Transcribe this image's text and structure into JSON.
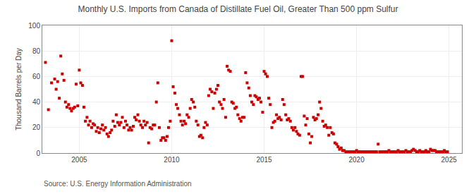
{
  "chart_data": {
    "type": "scatter",
    "title": "Monthly U.S. Imports from Canada of Distillate Fuel Oil, Greater Than 500 ppm Sulfur",
    "ylabel": "Thousand Barrels per Day",
    "annotations": [
      "Source: U.S. Energy Information Administration"
    ],
    "color": "#cc0000",
    "marker": "square",
    "grid": true,
    "xlim": [
      2003.0,
      2025.7
    ],
    "ylim": [
      0,
      100
    ],
    "xticks": [
      2005,
      2010,
      2015,
      2020,
      2025
    ],
    "yticks": [
      0,
      20,
      40,
      60,
      80,
      100
    ],
    "x": [
      2003.17,
      2003.33,
      2003.5,
      2003.67,
      2003.75,
      2003.83,
      2003.92,
      2004.0,
      2004.08,
      2004.17,
      2004.25,
      2004.33,
      2004.42,
      2004.5,
      2004.58,
      2004.67,
      2004.75,
      2004.83,
      2004.92,
      2005.0,
      2005.08,
      2005.17,
      2005.25,
      2005.33,
      2005.42,
      2005.5,
      2005.58,
      2005.67,
      2005.75,
      2005.83,
      2005.92,
      2006.0,
      2006.08,
      2006.17,
      2006.25,
      2006.33,
      2006.42,
      2006.5,
      2006.58,
      2006.67,
      2006.75,
      2006.83,
      2006.92,
      2007.0,
      2007.08,
      2007.17,
      2007.25,
      2007.33,
      2007.42,
      2007.5,
      2007.58,
      2007.67,
      2007.75,
      2007.83,
      2007.92,
      2008.0,
      2008.08,
      2008.17,
      2008.25,
      2008.33,
      2008.42,
      2008.5,
      2008.58,
      2008.67,
      2008.75,
      2008.83,
      2008.92,
      2009.0,
      2009.08,
      2009.17,
      2009.25,
      2009.33,
      2009.42,
      2009.5,
      2009.58,
      2009.67,
      2009.75,
      2009.83,
      2009.92,
      2010.0,
      2010.08,
      2010.17,
      2010.25,
      2010.33,
      2010.42,
      2010.5,
      2010.58,
      2010.67,
      2010.75,
      2010.83,
      2010.92,
      2011.0,
      2011.08,
      2011.17,
      2011.25,
      2011.33,
      2011.42,
      2011.5,
      2011.58,
      2011.67,
      2011.75,
      2011.83,
      2011.92,
      2012.0,
      2012.08,
      2012.17,
      2012.25,
      2012.33,
      2012.42,
      2012.5,
      2012.58,
      2012.67,
      2012.75,
      2012.83,
      2012.92,
      2013.0,
      2013.08,
      2013.17,
      2013.25,
      2013.33,
      2013.42,
      2013.5,
      2013.58,
      2013.67,
      2013.75,
      2013.83,
      2013.92,
      2014.0,
      2014.08,
      2014.17,
      2014.25,
      2014.33,
      2014.42,
      2014.5,
      2014.58,
      2014.67,
      2014.75,
      2014.83,
      2014.92,
      2015.0,
      2015.08,
      2015.17,
      2015.25,
      2015.33,
      2015.42,
      2015.5,
      2015.58,
      2015.67,
      2015.75,
      2015.83,
      2015.92,
      2016.0,
      2016.08,
      2016.17,
      2016.25,
      2016.33,
      2016.42,
      2016.5,
      2016.58,
      2016.67,
      2016.75,
      2016.83,
      2016.92,
      2017.0,
      2017.08,
      2017.17,
      2017.25,
      2017.33,
      2017.42,
      2017.5,
      2017.58,
      2017.67,
      2017.75,
      2017.83,
      2017.92,
      2018.0,
      2018.08,
      2018.17,
      2018.25,
      2018.33,
      2018.42,
      2018.5,
      2018.58,
      2018.67,
      2018.75,
      2018.83,
      2018.92,
      2019.0,
      2019.08,
      2019.17,
      2019.25,
      2019.33,
      2019.42,
      2019.5,
      2019.58,
      2019.67,
      2019.75,
      2019.83,
      2019.92,
      2020.0,
      2020.08,
      2020.17,
      2020.25,
      2020.33,
      2020.42,
      2020.5,
      2020.58,
      2020.67,
      2020.75,
      2020.83,
      2020.92,
      2021.0,
      2021.08,
      2021.17,
      2021.25,
      2021.33,
      2021.42,
      2021.5,
      2021.58,
      2021.67,
      2021.75,
      2021.83,
      2021.92,
      2022.0,
      2022.08,
      2022.17,
      2022.25,
      2022.33,
      2022.42,
      2022.5,
      2022.58,
      2022.67,
      2022.75,
      2022.83,
      2022.92,
      2023.0,
      2023.08,
      2023.17,
      2023.25,
      2023.33,
      2023.42,
      2023.5,
      2023.58,
      2023.67,
      2023.75,
      2023.83,
      2023.92,
      2024.0,
      2024.08,
      2024.17,
      2024.25,
      2024.33,
      2024.42,
      2024.5,
      2024.58,
      2024.67,
      2024.75,
      2024.83,
      2024.92
    ],
    "values": [
      71,
      34,
      55,
      58,
      50,
      56,
      43,
      76,
      62,
      57,
      40,
      36,
      38,
      35,
      33,
      35,
      36,
      54,
      37,
      65,
      55,
      53,
      36,
      25,
      28,
      22,
      25,
      20,
      23,
      22,
      17,
      20,
      16,
      19,
      22,
      18,
      20,
      15,
      13,
      16,
      18,
      25,
      21,
      30,
      24,
      22,
      24,
      28,
      20,
      25,
      22,
      18,
      20,
      18,
      21,
      28,
      26,
      30,
      25,
      22,
      20,
      25,
      22,
      24,
      8,
      20,
      19,
      22,
      22,
      40,
      55,
      20,
      10,
      12,
      12,
      10,
      13,
      20,
      25,
      88,
      52,
      47,
      38,
      35,
      30,
      25,
      22,
      25,
      23,
      30,
      28,
      35,
      42,
      40,
      36,
      25,
      22,
      13,
      14,
      12,
      20,
      24,
      22,
      45,
      50,
      48,
      35,
      47,
      50,
      53,
      40,
      38,
      35,
      42,
      28,
      68,
      65,
      64,
      40,
      39,
      35,
      36,
      30,
      27,
      25,
      28,
      28,
      63,
      55,
      51,
      45,
      40,
      38,
      45,
      44,
      42,
      43,
      40,
      32,
      64,
      62,
      60,
      43,
      38,
      20,
      24,
      25,
      30,
      27,
      28,
      26,
      42,
      38,
      30,
      26,
      27,
      25,
      20,
      18,
      20,
      17,
      15,
      14,
      60,
      60,
      29,
      22,
      27,
      15,
      8,
      13,
      28,
      26,
      27,
      30,
      40,
      35,
      25,
      21,
      22,
      20,
      14,
      20,
      16,
      15,
      8,
      7,
      5,
      3,
      4,
      2,
      2,
      1,
      1,
      1,
      1,
      1,
      1,
      1,
      2,
      1,
      1,
      1,
      1,
      1,
      1,
      1,
      1,
      1,
      1,
      1,
      1,
      1,
      7,
      1,
      1,
      1,
      1,
      1,
      1,
      2,
      1,
      1,
      1,
      1,
      1,
      2,
      1,
      1,
      1,
      1,
      2,
      1,
      1,
      1,
      2,
      3,
      2,
      1,
      1,
      2,
      1,
      1,
      1,
      2,
      1,
      1,
      3,
      2,
      2,
      2,
      1,
      1,
      1,
      1,
      1,
      2,
      1,
      1
    ]
  }
}
